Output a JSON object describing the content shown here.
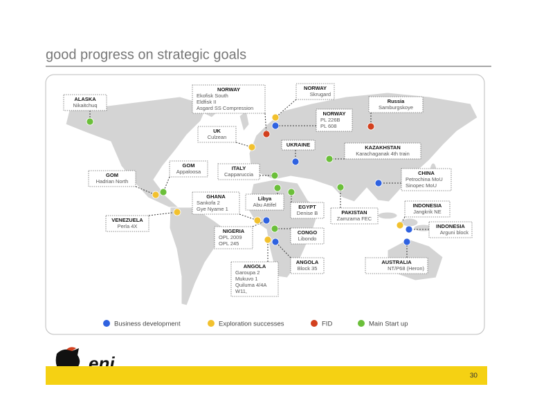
{
  "title": "good progress on strategic goals",
  "legend": [
    {
      "label": "Business development",
      "color": "#2f62e0"
    },
    {
      "label": "Exploration successes",
      "color": "#f2c12e"
    },
    {
      "label": "FID",
      "color": "#d2401e"
    },
    {
      "label": "Main Start up",
      "color": "#6bbf3a"
    }
  ],
  "callouts": [
    {
      "title": "ALASKA",
      "lines": [
        "Nikaitchuq"
      ],
      "color": "#6bbf3a"
    },
    {
      "title": "NORWAY",
      "lines": [
        "Ekofisk South",
        "Eldfisk II",
        "Asgard SS Compression"
      ],
      "color": "#d2401e"
    },
    {
      "title": "NORWAY",
      "lines": [
        "Skrugard"
      ],
      "color": "#f2c12e"
    },
    {
      "title": "Russia",
      "lines": [
        "Samburgskoye"
      ],
      "color": "#d2401e"
    },
    {
      "title": "NORWAY",
      "lines": [
        "PL 226B",
        "PL 608"
      ],
      "color": "#2f62e0"
    },
    {
      "title": "UK",
      "lines": [
        "Culzean"
      ],
      "color": "#f2c12e"
    },
    {
      "title": "UKRAINE",
      "lines": [],
      "color": "#2f62e0"
    },
    {
      "title": "KAZAKHSTAN",
      "lines": [
        "Karachaganak 4th train"
      ],
      "color": "#6bbf3a"
    },
    {
      "title": "GOM",
      "lines": [
        "Appaloosa"
      ],
      "color": "#6bbf3a"
    },
    {
      "title": "ITALY",
      "lines": [
        "Capparuccia"
      ],
      "color": "#6bbf3a"
    },
    {
      "title": "GOM",
      "lines": [
        "Hadrian North"
      ],
      "color": "#f2c12e"
    },
    {
      "title": "CHINA",
      "lines": [
        "Petrochina MoU",
        "Sinopec MoU"
      ],
      "color": "#2f62e0"
    },
    {
      "title": "GHANA",
      "lines": [
        "Sankofa 2",
        "Gye Nyame 1"
      ],
      "color": "#f2c12e"
    },
    {
      "title": "Libya",
      "lines": [
        "Abu Attifel"
      ],
      "color": "#6bbf3a"
    },
    {
      "title": "EGYPT",
      "lines": [
        "Denise B"
      ],
      "color": "#6bbf3a"
    },
    {
      "title": "PAKISTAN",
      "lines": [
        "Zamzama FEC"
      ],
      "color": "#6bbf3a"
    },
    {
      "title": "INDONESIA",
      "lines": [
        "Jangkrik NE"
      ],
      "color": "#f2c12e"
    },
    {
      "title": "VENEZUELA",
      "lines": [
        "Perla 4X"
      ],
      "color": "#f2c12e"
    },
    {
      "title": "INDONESIA",
      "lines": [
        "Arguni block"
      ],
      "color": "#2f62e0"
    },
    {
      "title": "NIGERIA",
      "lines": [
        "OPL 2009",
        "OPL 245"
      ],
      "color": "#2f62e0"
    },
    {
      "title": "CONGO",
      "lines": [
        "Libondo"
      ],
      "color": "#6bbf3a"
    },
    {
      "title": "ANGOLA",
      "lines": [
        "Block 35"
      ],
      "color": "#2f62e0"
    },
    {
      "title": "ANGOLA",
      "lines": [
        "Garoupa 2",
        "Mukuvo 1",
        "Quiluma 4/4A",
        "W11,"
      ],
      "color": "#f2c12e"
    },
    {
      "title": "AUSTRALIA",
      "lines": [
        "NT/P68 (Heron)"
      ],
      "color": "#2f62e0"
    }
  ],
  "footer": {
    "logo": "eni",
    "page": "30"
  }
}
